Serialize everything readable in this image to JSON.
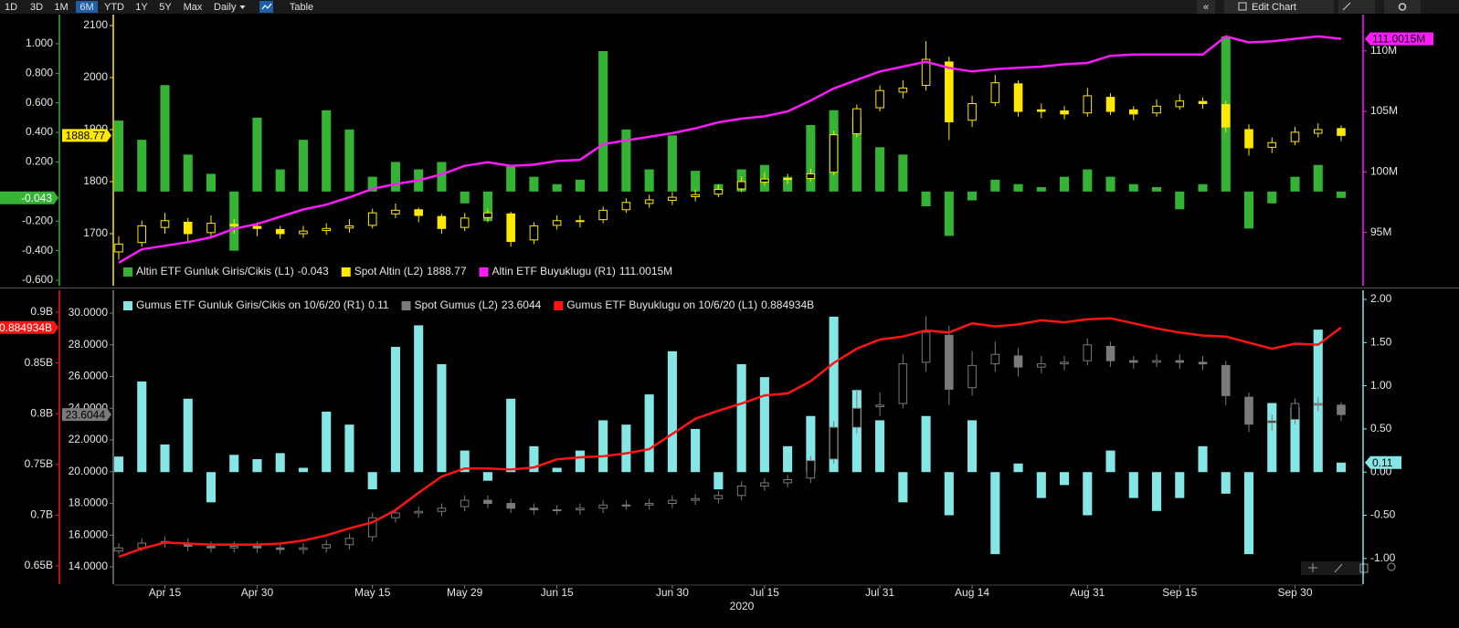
{
  "toolbar": {
    "ranges": [
      "1D",
      "3D",
      "1M",
      "6M",
      "YTD",
      "1Y",
      "5Y",
      "Max"
    ],
    "active": "6M",
    "interval": "Daily",
    "table": "Table",
    "edit": "Edit Chart"
  },
  "chart_data": [
    {
      "type": "combo",
      "ylim": [
        -0.637,
        1.197
      ],
      "yticks": [
        {
          "value": 1,
          "label": "1.000"
        },
        {
          "value": 0.8,
          "label": "0.800"
        },
        {
          "value": 0.6,
          "label": "0.600"
        },
        {
          "value": 0.4,
          "label": "0.400"
        },
        {
          "value": 0.2,
          "label": "0.200"
        },
        {
          "value": -0.2,
          "label": "-0.200"
        },
        {
          "value": -0.4,
          "label": "-0.400"
        },
        {
          "value": -0.6,
          "label": "-0.600"
        }
      ],
      "y2lim": [
        1600,
        2121
      ],
      "y2ticks": [
        2100,
        2000,
        1900,
        1800,
        1700
      ],
      "y3lim": [
        90600000,
        113000000
      ],
      "y3ticks": [
        {
          "value": 110000000,
          "label": "110M"
        },
        {
          "value": 105000000,
          "label": "105M"
        },
        {
          "value": 100000000,
          "label": "100M"
        },
        {
          "value": 95000000,
          "label": "95M"
        }
      ],
      "series": [
        {
          "name": "Altin ETF Gunluk Giris/Cikis (L1)",
          "type": "bar",
          "axis": "y",
          "color": "#35b335",
          "last_label": "-0.043",
          "values": [
            0.48,
            0.35,
            0.72,
            0.25,
            0.12,
            -0.4,
            0.5,
            0.15,
            0.35,
            0.55,
            0.42,
            0.1,
            0.2,
            0.15,
            0.2,
            -0.08,
            -0.2,
            0.18,
            0.1,
            0.05,
            0.08,
            0.95,
            0.42,
            0.15,
            0.38,
            0.14,
            0.05,
            0.15,
            0.18,
            0.1,
            0.45,
            0.55,
            0.5,
            0.3,
            0.25,
            -0.1,
            -0.3,
            -0.06,
            0.08,
            0.05,
            0.03,
            0.1,
            0.15,
            0.1,
            0.05,
            0.03,
            -0.12,
            0.05,
            1.05,
            -0.25,
            -0.08,
            0.1,
            0.18,
            -0.043
          ]
        },
        {
          "name": "Spot Altin (L2)",
          "type": "candlestick",
          "axis": "y2",
          "color": "#ffe800",
          "last_label": "1888.77",
          "open": [
            1665,
            1683,
            1712,
            1722,
            1702,
            1718,
            1714,
            1708,
            1700,
            1706,
            1711,
            1716,
            1738,
            1746,
            1733,
            1712,
            1731,
            1738,
            1688,
            1716,
            1724,
            1727,
            1746,
            1758,
            1764,
            1771,
            1776,
            1786,
            1799,
            1806,
            1806,
            1818,
            1892,
            1942,
            1972,
            1985,
            2030,
            1918,
            1952,
            1988,
            1938,
            1936,
            1932,
            1962,
            1938,
            1932,
            1944,
            1954,
            1948,
            1900,
            1866,
            1877,
            1893,
            1902
          ],
          "high": [
            1695,
            1725,
            1740,
            1730,
            1735,
            1728,
            1722,
            1715,
            1715,
            1720,
            1728,
            1748,
            1758,
            1750,
            1738,
            1740,
            1748,
            1742,
            1722,
            1735,
            1735,
            1752,
            1768,
            1775,
            1780,
            1785,
            1795,
            1810,
            1818,
            1815,
            1825,
            1898,
            1948,
            1985,
            1995,
            2070,
            2040,
            1965,
            2005,
            1995,
            1950,
            1945,
            1980,
            1970,
            1945,
            1958,
            1968,
            1962,
            1955,
            1910,
            1885,
            1905,
            1912,
            1908
          ],
          "low": [
            1650,
            1675,
            1700,
            1685,
            1695,
            1700,
            1695,
            1690,
            1692,
            1698,
            1702,
            1710,
            1730,
            1722,
            1700,
            1705,
            1722,
            1675,
            1680,
            1708,
            1712,
            1720,
            1740,
            1750,
            1755,
            1762,
            1770,
            1780,
            1792,
            1795,
            1800,
            1812,
            1885,
            1935,
            1960,
            1975,
            1880,
            1905,
            1945,
            1925,
            1922,
            1920,
            1925,
            1928,
            1918,
            1925,
            1938,
            1940,
            1895,
            1850,
            1855,
            1870,
            1885,
            1878
          ],
          "close": [
            1680,
            1715,
            1725,
            1700,
            1720,
            1715,
            1710,
            1700,
            1705,
            1710,
            1715,
            1740,
            1745,
            1735,
            1710,
            1730,
            1740,
            1685,
            1715,
            1725,
            1725,
            1745,
            1760,
            1765,
            1770,
            1775,
            1785,
            1800,
            1805,
            1805,
            1815,
            1890,
            1940,
            1975,
            1980,
            2035,
            1915,
            1950,
            1990,
            1935,
            1935,
            1930,
            1965,
            1935,
            1930,
            1945,
            1955,
            1950,
            1905,
            1865,
            1875,
            1895,
            1900,
            1888.77
          ]
        },
        {
          "name": "Altin ETF Buyuklugu (R1)",
          "type": "line",
          "axis": "y3",
          "color": "#ff1aff",
          "last_label": "111.0015M",
          "values": [
            92500000,
            93600000,
            93900000,
            94200000,
            94600000,
            95300000,
            95700000,
            96300000,
            96900000,
            97300000,
            97900000,
            98600000,
            99000000,
            99300000,
            99800000,
            100500000,
            100800000,
            100500000,
            100600000,
            100900000,
            101000000,
            102300000,
            102600000,
            102900000,
            103200000,
            103600000,
            104100000,
            104400000,
            104600000,
            105000000,
            105900000,
            106900000,
            107600000,
            108300000,
            108700000,
            109100000,
            108600000,
            108300000,
            108500000,
            108600000,
            108700000,
            108900000,
            109000000,
            109600000,
            109700000,
            109700000,
            109700000,
            109700000,
            111200000,
            110700000,
            110800000,
            111000000,
            111200000,
            111001500
          ]
        }
      ]
    },
    {
      "type": "combo",
      "categories": [
        null,
        null,
        "Apr 15",
        null,
        null,
        null,
        "Apr 30",
        null,
        null,
        null,
        null,
        "May 15",
        null,
        null,
        null,
        "May 29",
        null,
        null,
        null,
        "Jun 15",
        null,
        null,
        null,
        null,
        "Jun 30",
        null,
        null,
        null,
        "Jul 15",
        null,
        null,
        null,
        null,
        "Jul 31",
        null,
        null,
        null,
        "Aug 14",
        null,
        null,
        null,
        null,
        "Aug 31",
        null,
        null,
        null,
        "Sep 15",
        null,
        null,
        null,
        null,
        "Sep 30",
        null,
        null
      ],
      "xlabel": "2020",
      "ylim": [
        632000000,
        921600000
      ],
      "yticks": [
        {
          "value": 900000000,
          "label": "0.9B"
        },
        {
          "value": 850000000,
          "label": "0.85B"
        },
        {
          "value": 800000000,
          "label": "0.8B"
        },
        {
          "value": 750000000,
          "label": "0.75B"
        },
        {
          "value": 700000000,
          "label": "0.7B"
        },
        {
          "value": 650000000,
          "label": "0.65B"
        }
      ],
      "y2lim": [
        12.91,
        31.44
      ],
      "y2ticks": [
        {
          "value": 30,
          "label": "30.0000"
        },
        {
          "value": 28,
          "label": "28.0000"
        },
        {
          "value": 26,
          "label": "26.0000"
        },
        {
          "value": 24,
          "label": "24.0000"
        },
        {
          "value": 22,
          "label": "22.0000"
        },
        {
          "value": 20,
          "label": "20.0000"
        },
        {
          "value": 18,
          "label": "18.0000"
        },
        {
          "value": 16,
          "label": "16.0000"
        },
        {
          "value": 14,
          "label": "14.0000"
        }
      ],
      "y3lim": [
        -1.298,
        2.106
      ],
      "y3ticks": [
        {
          "value": 2,
          "label": "2.00"
        },
        {
          "value": 1.5,
          "label": "1.50"
        },
        {
          "value": 1,
          "label": "1.00"
        },
        {
          "value": 0.5,
          "label": "0.50"
        },
        {
          "value": 0,
          "label": "0.00"
        },
        {
          "value": -0.5,
          "label": "-0.50"
        },
        {
          "value": -1,
          "label": "-1.00"
        }
      ],
      "series": [
        {
          "name": "Gumus ETF Gunluk Giris/Cikis on 10/6/20 (R1)",
          "type": "bar",
          "axis": "y3",
          "color": "#86e6e6",
          "last_label": "0.11",
          "values": [
            0.18,
            1.05,
            0.32,
            0.85,
            -0.35,
            0.2,
            0.15,
            0.22,
            0.05,
            0.7,
            0.55,
            -0.2,
            1.45,
            1.7,
            1.25,
            0.25,
            -0.1,
            0.85,
            0.3,
            0.05,
            0.25,
            0.6,
            0.55,
            0.9,
            1.4,
            0.5,
            -0.2,
            1.25,
            1.1,
            0.3,
            0.65,
            1.8,
            0.95,
            0.6,
            -0.35,
            0.65,
            -0.5,
            0.6,
            -0.95,
            0.1,
            -0.3,
            -0.15,
            -0.5,
            0.25,
            -0.3,
            -0.45,
            -0.3,
            0.3,
            -0.25,
            -0.95,
            0.8,
            0.75,
            1.65,
            0.11
          ]
        },
        {
          "name": "Spot Gumus (L2)",
          "type": "candlestick",
          "axis": "y2",
          "color": "#7a7a7a",
          "last_label": "23.6044",
          "open": [
            15.0,
            15.2,
            15.6,
            15.5,
            15.3,
            15.2,
            15.3,
            15.2,
            15.1,
            15.2,
            15.4,
            15.9,
            17.1,
            17.4,
            17.5,
            17.8,
            18.2,
            18.0,
            17.7,
            17.6,
            17.6,
            17.7,
            17.9,
            17.9,
            18.0,
            18.2,
            18.3,
            18.5,
            19.1,
            19.3,
            19.6,
            20.8,
            22.8,
            24.1,
            24.3,
            26.9,
            28.6,
            25.3,
            26.8,
            27.3,
            26.6,
            26.8,
            27.0,
            27.9,
            27.0,
            26.9,
            27.0,
            26.9,
            26.7,
            24.7,
            23.1,
            23.3,
            24.3,
            24.2
          ],
          "high": [
            15.5,
            15.8,
            15.9,
            15.8,
            15.6,
            15.6,
            15.6,
            15.5,
            15.5,
            15.7,
            16.1,
            17.4,
            17.7,
            17.8,
            18.0,
            18.5,
            18.5,
            18.3,
            18.0,
            17.9,
            18.0,
            18.2,
            18.2,
            18.3,
            18.5,
            18.6,
            18.8,
            19.4,
            19.6,
            19.8,
            21.0,
            23.2,
            25.2,
            25.0,
            27.4,
            29.8,
            29.2,
            27.6,
            28.2,
            27.8,
            27.3,
            27.3,
            28.4,
            28.2,
            27.3,
            27.4,
            27.4,
            27.3,
            27.0,
            25.0,
            23.6,
            24.6,
            24.7,
            24.4
          ],
          "low": [
            14.8,
            15.0,
            15.2,
            15.0,
            14.9,
            14.9,
            14.9,
            14.8,
            14.8,
            14.9,
            15.1,
            15.6,
            16.8,
            17.1,
            17.2,
            17.5,
            17.7,
            17.4,
            17.3,
            17.3,
            17.3,
            17.4,
            17.6,
            17.6,
            17.7,
            17.9,
            18.0,
            18.2,
            18.8,
            19.0,
            19.3,
            20.5,
            22.4,
            23.5,
            24.0,
            26.3,
            24.2,
            24.8,
            26.3,
            26.0,
            26.2,
            26.4,
            26.7,
            26.6,
            26.5,
            26.6,
            26.5,
            26.4,
            24.2,
            22.5,
            22.6,
            23.0,
            23.8,
            23.2
          ],
          "close": [
            15.2,
            15.5,
            15.5,
            15.3,
            15.2,
            15.3,
            15.2,
            15.1,
            15.2,
            15.4,
            15.8,
            17.1,
            17.4,
            17.5,
            17.7,
            18.2,
            18.0,
            17.7,
            17.6,
            17.6,
            17.7,
            17.9,
            17.9,
            18.0,
            18.2,
            18.3,
            18.5,
            19.1,
            19.3,
            19.5,
            20.7,
            22.8,
            24.0,
            24.2,
            26.8,
            28.8,
            25.2,
            26.7,
            27.4,
            26.6,
            26.8,
            26.9,
            28.0,
            27.0,
            26.9,
            27.0,
            26.9,
            26.8,
            24.8,
            23.0,
            23.2,
            24.3,
            24.2,
            23.6044
          ]
        },
        {
          "name": "Gumus ETF Buyuklugu on 10/6/20 (L1)",
          "type": "line",
          "axis": "y",
          "color": "#ff1414",
          "last_label": "0.884934B",
          "values": [
            659000000,
            667000000,
            673000000,
            672000000,
            671000000,
            671000000,
            671000000,
            672000000,
            675000000,
            680000000,
            687000000,
            693000000,
            705000000,
            722000000,
            738000000,
            746000000,
            746000000,
            745000000,
            747000000,
            755000000,
            757000000,
            758000000,
            761000000,
            765000000,
            780000000,
            795000000,
            803000000,
            810000000,
            818000000,
            820000000,
            832000000,
            850000000,
            864000000,
            873000000,
            876000000,
            882000000,
            880000000,
            889000000,
            886000000,
            888000000,
            892000000,
            890000000,
            893000000,
            894000000,
            889000000,
            884000000,
            880000000,
            877000000,
            876000000,
            870000000,
            864000000,
            869000000,
            868000000,
            884934000
          ]
        }
      ]
    }
  ]
}
